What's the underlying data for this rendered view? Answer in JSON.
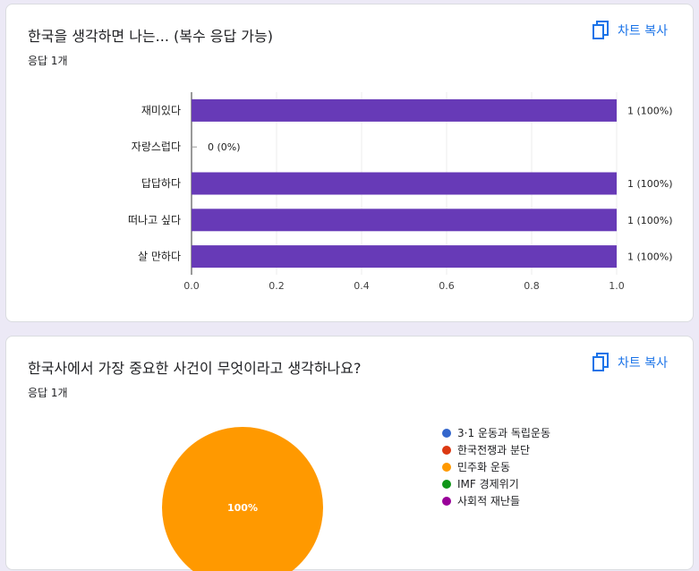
{
  "questions": [
    {
      "title": "한국을 생각하면 나는... (복수 응답 가능)",
      "response_count": "응답 1개",
      "copy_label": "차트 복사"
    },
    {
      "title": "한국사에서 가장 중요한 사건이 무엇이라고 생각하나요?",
      "response_count": "응답 1개",
      "copy_label": "차트 복사"
    }
  ],
  "chart_data": [
    {
      "type": "bar",
      "orientation": "horizontal",
      "categories": [
        "재미있다",
        "자랑스럽다",
        "답답하다",
        "떠나고 싶다",
        "살 만하다"
      ],
      "values": [
        1,
        0,
        1,
        1,
        1
      ],
      "data_labels": [
        "1 (100%)",
        "0 (0%)",
        "1 (100%)",
        "1 (100%)",
        "1 (100%)"
      ],
      "xlim": [
        0,
        1
      ],
      "xticks": [
        "0.0",
        "0.2",
        "0.4",
        "0.6",
        "0.8",
        "1.0"
      ],
      "bar_color": "#673ab7",
      "grid": true
    },
    {
      "type": "pie",
      "categories": [
        "3·1 운동과 독립운동",
        "한국전쟁과 분단",
        "민주화 운동",
        "IMF 경제위기",
        "사회적 재난들"
      ],
      "values": [
        0,
        0,
        1,
        0,
        0
      ],
      "colors": [
        "#3366cc",
        "#dc3912",
        "#ff9900",
        "#109618",
        "#990099"
      ],
      "slice_labels": [
        "",
        "",
        "100%",
        "",
        ""
      ],
      "legend_position": "right"
    }
  ]
}
